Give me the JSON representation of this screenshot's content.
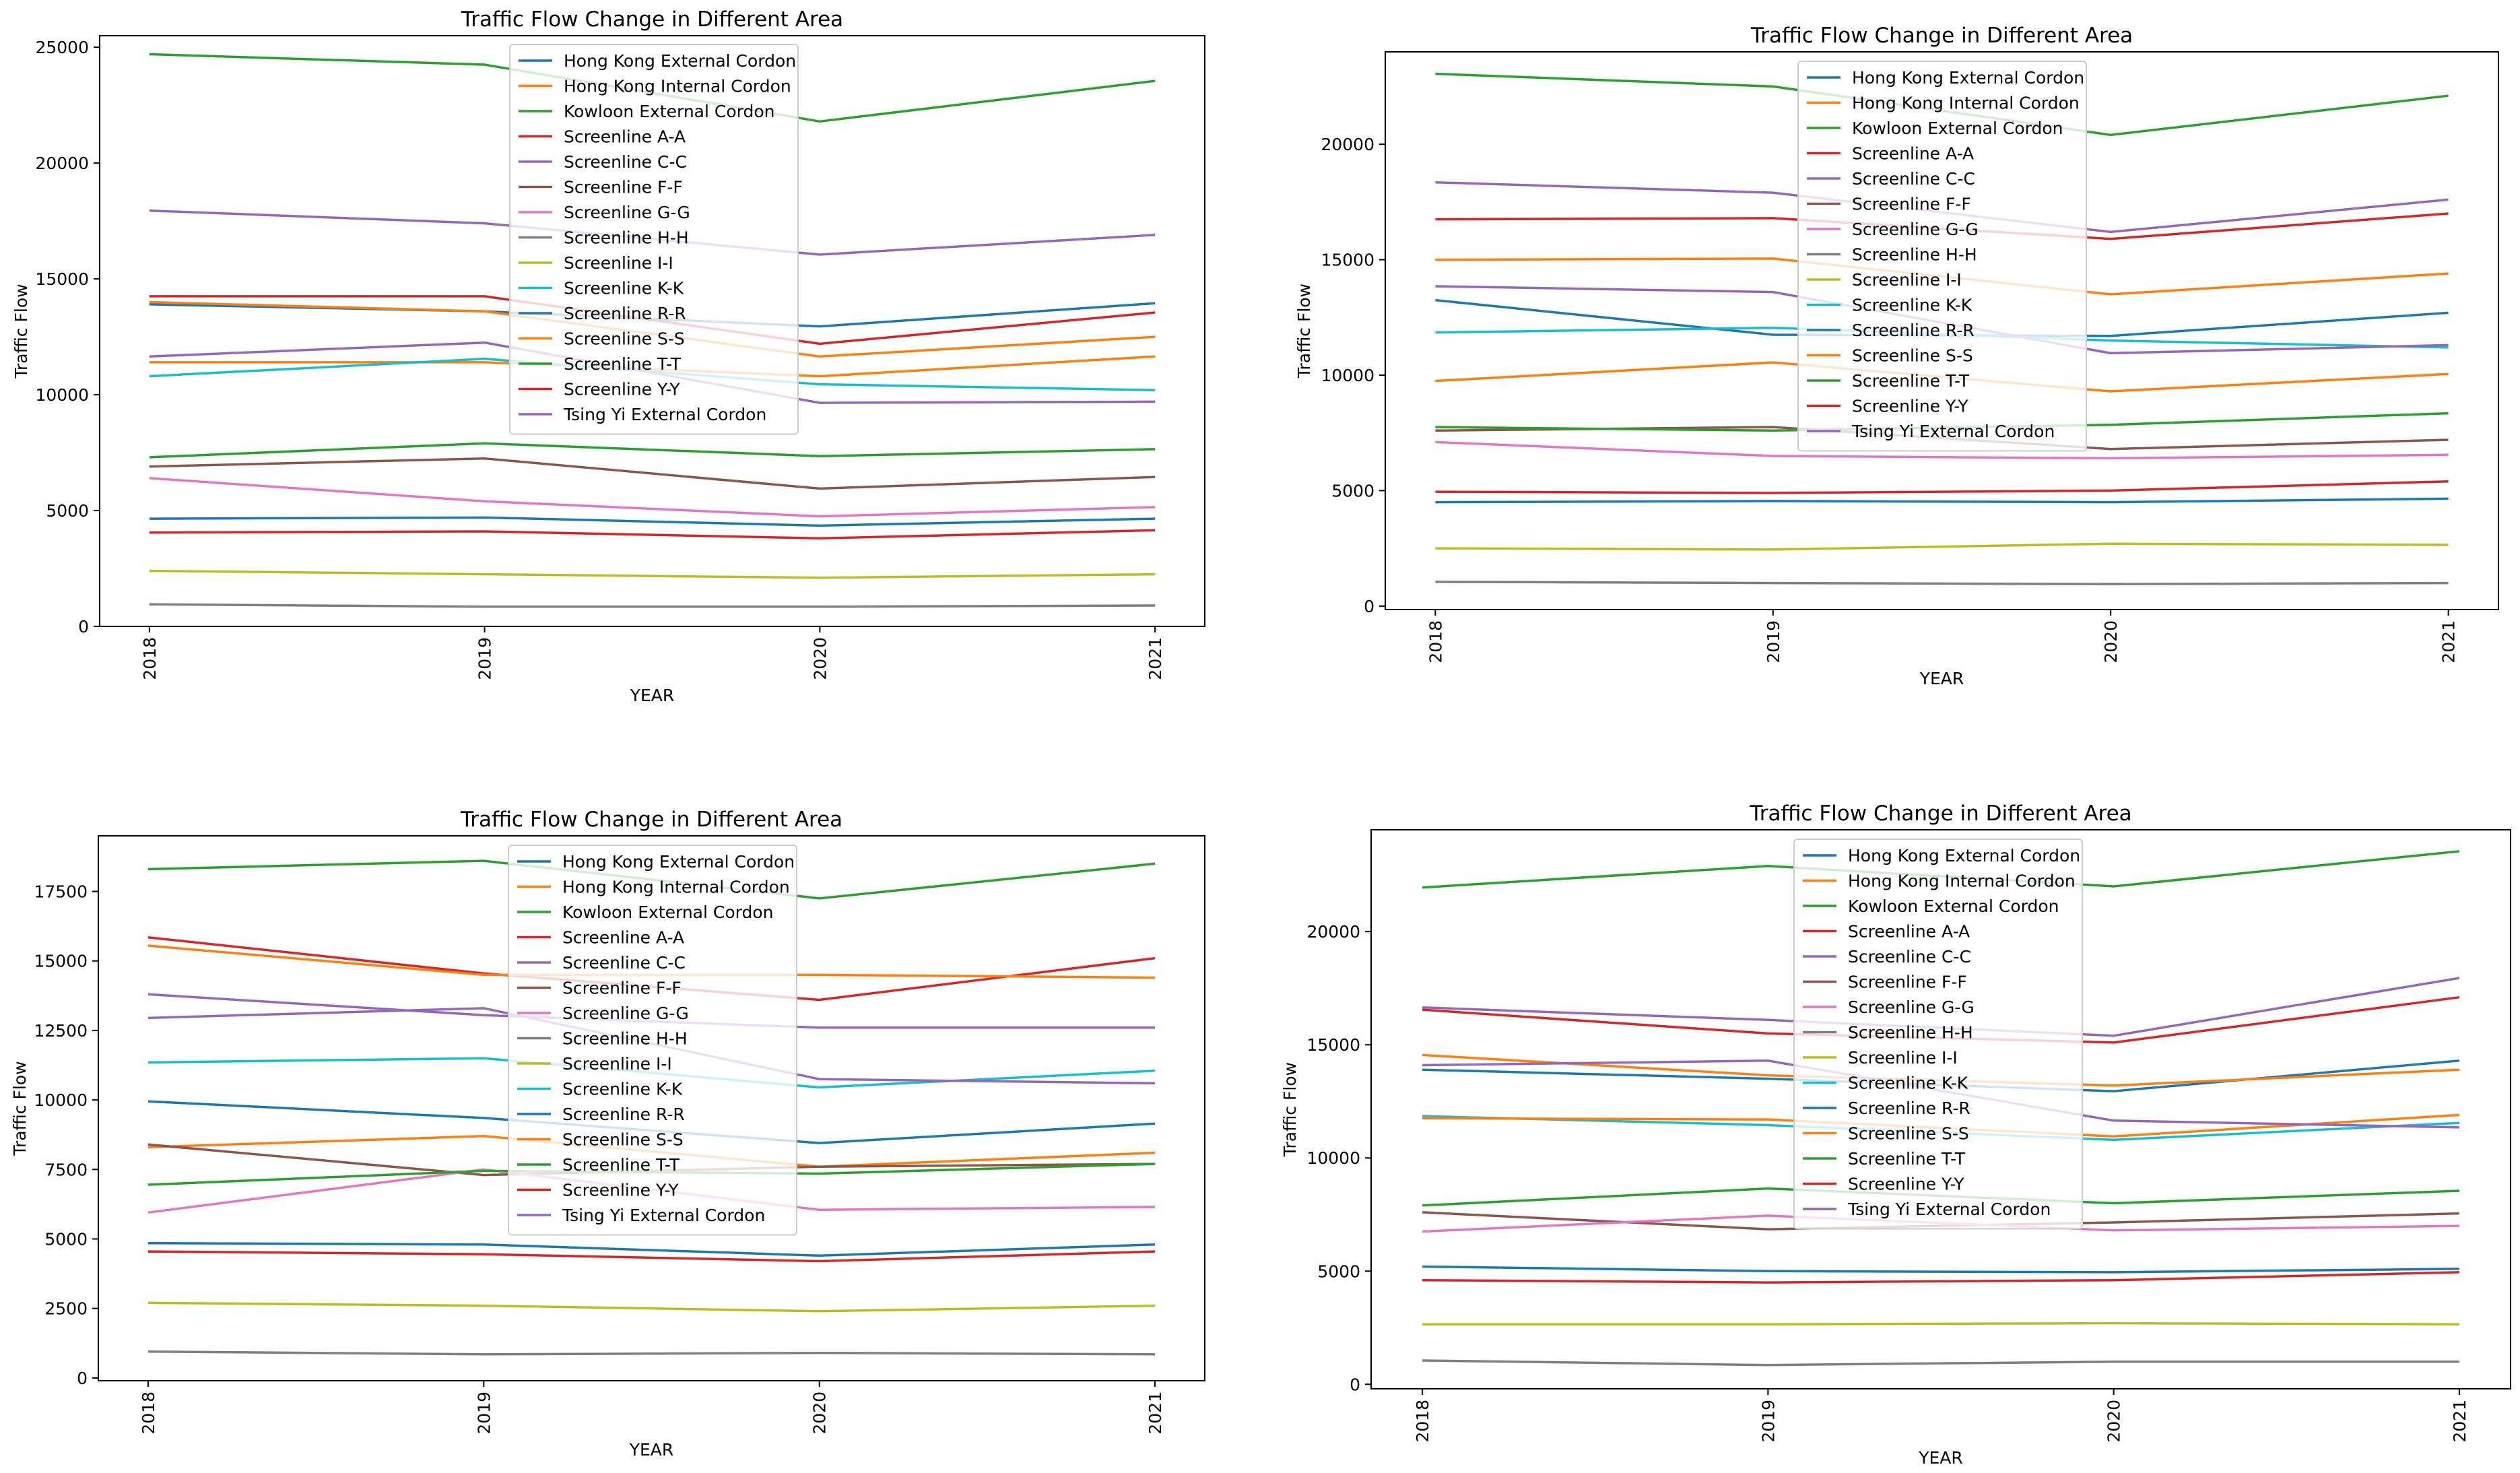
{
  "figure": {
    "title": "Traffic Flow Change in Different Area — four panels"
  },
  "chart_data": [
    {
      "type": "line",
      "title": "Traffic Flow Change in Different Area",
      "xlabel": "YEAR",
      "ylabel": "Traffic Flow",
      "categories": [
        "2018",
        "2019",
        "2020",
        "2021"
      ],
      "ylim": [
        0,
        25500
      ],
      "yticks": [
        0,
        5000,
        10000,
        15000,
        20000,
        25000
      ],
      "legend_location": "upper-center",
      "series": [
        {
          "name": "Hong Kong External Cordon",
          "color": "#1f77b4",
          "values": [
            13900,
            13600,
            12950,
            13950
          ]
        },
        {
          "name": "Hong Kong Internal Cordon",
          "color": "#ff7f0e",
          "values": [
            11400,
            11400,
            10800,
            11650
          ]
        },
        {
          "name": "Kowloon External Cordon",
          "color": "#2ca02c",
          "values": [
            24700,
            24250,
            21800,
            23550
          ]
        },
        {
          "name": "Screenline A-A",
          "color": "#d62728",
          "values": [
            14250,
            14250,
            12200,
            13550
          ]
        },
        {
          "name": "Screenline C-C",
          "color": "#9467bd",
          "values": [
            17950,
            17400,
            16050,
            16900
          ]
        },
        {
          "name": "Screenline F-F",
          "color": "#8c564b",
          "values": [
            6900,
            7250,
            5950,
            6450
          ]
        },
        {
          "name": "Screenline G-G",
          "color": "#e377c2",
          "values": [
            6400,
            5400,
            4750,
            5150
          ]
        },
        {
          "name": "Screenline H-H",
          "color": "#7f7f7f",
          "values": [
            950,
            850,
            850,
            900
          ]
        },
        {
          "name": "Screenline I-I",
          "color": "#bcbd22",
          "values": [
            2400,
            2250,
            2100,
            2250
          ]
        },
        {
          "name": "Screenline K-K",
          "color": "#17becf",
          "values": [
            10800,
            11550,
            10450,
            10200
          ]
        },
        {
          "name": "Screenline R-R",
          "color": "#1f77b4",
          "values": [
            4650,
            4700,
            4350,
            4650
          ]
        },
        {
          "name": "Screenline S-S",
          "color": "#ff7f0e",
          "values": [
            14000,
            13600,
            11650,
            12500
          ]
        },
        {
          "name": "Screenline T-T",
          "color": "#2ca02c",
          "values": [
            7300,
            7900,
            7350,
            7650
          ]
        },
        {
          "name": "Screenline Y-Y",
          "color": "#d62728",
          "values": [
            4050,
            4100,
            3800,
            4150
          ]
        },
        {
          "name": "Tsing Yi External Cordon",
          "color": "#9467bd",
          "values": [
            11650,
            12250,
            9650,
            9700
          ]
        }
      ]
    },
    {
      "type": "line",
      "title": "Traffic Flow Change in Different Area",
      "xlabel": "YEAR",
      "ylabel": "Traffic Flow",
      "categories": [
        "2018",
        "2019",
        "2020",
        "2021"
      ],
      "ylim": [
        -150,
        24000
      ],
      "yticks": [
        0,
        5000,
        10000,
        15000,
        20000
      ],
      "legend_location": "upper-center",
      "series": [
        {
          "name": "Hong Kong External Cordon",
          "color": "#1f77b4",
          "values": [
            13250,
            11750,
            11700,
            12700
          ]
        },
        {
          "name": "Hong Kong Internal Cordon",
          "color": "#ff7f0e",
          "values": [
            15000,
            15050,
            13500,
            14400
          ]
        },
        {
          "name": "Kowloon External Cordon",
          "color": "#2ca02c",
          "values": [
            23050,
            22500,
            20400,
            22100
          ]
        },
        {
          "name": "Screenline A-A",
          "color": "#d62728",
          "values": [
            16750,
            16800,
            15900,
            17000
          ]
        },
        {
          "name": "Screenline C-C",
          "color": "#9467bd",
          "values": [
            18350,
            17900,
            16200,
            17600
          ]
        },
        {
          "name": "Screenline F-F",
          "color": "#8c564b",
          "values": [
            7600,
            7750,
            6800,
            7200
          ]
        },
        {
          "name": "Screenline G-G",
          "color": "#e377c2",
          "values": [
            7100,
            6500,
            6400,
            6550
          ]
        },
        {
          "name": "Screenline H-H",
          "color": "#7f7f7f",
          "values": [
            1050,
            1000,
            950,
            1000
          ]
        },
        {
          "name": "Screenline I-I",
          "color": "#bcbd22",
          "values": [
            2500,
            2450,
            2700,
            2650
          ]
        },
        {
          "name": "Screenline K-K",
          "color": "#17becf",
          "values": [
            11850,
            12050,
            11500,
            11200
          ]
        },
        {
          "name": "Screenline R-R",
          "color": "#1f77b4",
          "values": [
            4500,
            4550,
            4500,
            4650
          ]
        },
        {
          "name": "Screenline S-S",
          "color": "#ff7f0e",
          "values": [
            9750,
            10550,
            9300,
            10050
          ]
        },
        {
          "name": "Screenline T-T",
          "color": "#2ca02c",
          "values": [
            7750,
            7600,
            7850,
            8350
          ]
        },
        {
          "name": "Screenline Y-Y",
          "color": "#d62728",
          "values": [
            4950,
            4900,
            5000,
            5400
          ]
        },
        {
          "name": "Tsing Yi External Cordon",
          "color": "#9467bd",
          "values": [
            13850,
            13600,
            10950,
            11300
          ]
        }
      ]
    },
    {
      "type": "line",
      "title": "Traffic Flow Change in Different Area",
      "xlabel": "YEAR",
      "ylabel": "Traffic Flow",
      "categories": [
        "2018",
        "2019",
        "2020",
        "2021"
      ],
      "ylim": [
        -100,
        19500
      ],
      "yticks": [
        0,
        2500,
        5000,
        7500,
        10000,
        12500,
        15000,
        17500
      ],
      "legend_location": "upper-center",
      "series": [
        {
          "name": "Hong Kong External Cordon",
          "color": "#1f77b4",
          "values": [
            9950,
            9350,
            8450,
            9150
          ]
        },
        {
          "name": "Hong Kong Internal Cordon",
          "color": "#ff7f0e",
          "values": [
            8300,
            8700,
            7600,
            8100
          ]
        },
        {
          "name": "Kowloon External Cordon",
          "color": "#2ca02c",
          "values": [
            18300,
            18600,
            17250,
            18500
          ]
        },
        {
          "name": "Screenline A-A",
          "color": "#d62728",
          "values": [
            15850,
            14550,
            13600,
            15100
          ]
        },
        {
          "name": "Screenline C-C",
          "color": "#9467bd",
          "values": [
            13800,
            13050,
            12600,
            12600
          ]
        },
        {
          "name": "Screenline F-F",
          "color": "#8c564b",
          "values": [
            8400,
            7300,
            7600,
            7700
          ]
        },
        {
          "name": "Screenline G-G",
          "color": "#e377c2",
          "values": [
            5950,
            7500,
            6050,
            6150
          ]
        },
        {
          "name": "Screenline H-H",
          "color": "#7f7f7f",
          "values": [
            950,
            850,
            900,
            850
          ]
        },
        {
          "name": "Screenline I-I",
          "color": "#bcbd22",
          "values": [
            2700,
            2600,
            2400,
            2600
          ]
        },
        {
          "name": "Screenline K-K",
          "color": "#17becf",
          "values": [
            11350,
            11500,
            10450,
            11050
          ]
        },
        {
          "name": "Screenline R-R",
          "color": "#1f77b4",
          "values": [
            4850,
            4800,
            4400,
            4800
          ]
        },
        {
          "name": "Screenline S-S",
          "color": "#ff7f0e",
          "values": [
            15550,
            14500,
            14500,
            14400
          ]
        },
        {
          "name": "Screenline T-T",
          "color": "#2ca02c",
          "values": [
            6950,
            7450,
            7350,
            7700
          ]
        },
        {
          "name": "Screenline Y-Y",
          "color": "#d62728",
          "values": [
            4550,
            4450,
            4200,
            4550
          ]
        },
        {
          "name": "Tsing Yi External Cordon",
          "color": "#9467bd",
          "values": [
            12950,
            13300,
            10750,
            10600
          ]
        }
      ]
    },
    {
      "type": "line",
      "title": "Traffic Flow Change in Different Area",
      "xlabel": "YEAR",
      "ylabel": "Traffic Flow",
      "categories": [
        "2018",
        "2019",
        "2020",
        "2021"
      ],
      "ylim": [
        -200,
        24500
      ],
      "yticks": [
        0,
        5000,
        10000,
        15000,
        20000
      ],
      "legend_location": "upper-center",
      "series": [
        {
          "name": "Hong Kong External Cordon",
          "color": "#1f77b4",
          "values": [
            13900,
            13500,
            12950,
            14300
          ]
        },
        {
          "name": "Hong Kong Internal Cordon",
          "color": "#ff7f0e",
          "values": [
            14550,
            13650,
            13200,
            13900
          ]
        },
        {
          "name": "Kowloon External Cordon",
          "color": "#2ca02c",
          "values": [
            21950,
            22900,
            22000,
            23550
          ]
        },
        {
          "name": "Screenline A-A",
          "color": "#d62728",
          "values": [
            16550,
            15500,
            15100,
            17100
          ]
        },
        {
          "name": "Screenline C-C",
          "color": "#9467bd",
          "values": [
            16650,
            16100,
            15400,
            17950
          ]
        },
        {
          "name": "Screenline F-F",
          "color": "#8c564b",
          "values": [
            7600,
            6850,
            7150,
            7550
          ]
        },
        {
          "name": "Screenline G-G",
          "color": "#e377c2",
          "values": [
            6750,
            7450,
            6800,
            7000
          ]
        },
        {
          "name": "Screenline H-H",
          "color": "#7f7f7f",
          "values": [
            1050,
            850,
            1000,
            1000
          ]
        },
        {
          "name": "Screenline I-I",
          "color": "#bcbd22",
          "values": [
            2650,
            2650,
            2700,
            2650
          ]
        },
        {
          "name": "Screenline K-K",
          "color": "#17becf",
          "values": [
            11850,
            11450,
            10800,
            11550
          ]
        },
        {
          "name": "Screenline R-R",
          "color": "#1f77b4",
          "values": [
            5200,
            5000,
            4950,
            5100
          ]
        },
        {
          "name": "Screenline S-S",
          "color": "#ff7f0e",
          "values": [
            11750,
            11700,
            10950,
            11900
          ]
        },
        {
          "name": "Screenline T-T",
          "color": "#2ca02c",
          "values": [
            7900,
            8650,
            8000,
            8550
          ]
        },
        {
          "name": "Screenline Y-Y",
          "color": "#d62728",
          "values": [
            4600,
            4500,
            4600,
            4950
          ]
        },
        {
          "name": "Tsing Yi External Cordon",
          "color": "#9467bd",
          "values": [
            14100,
            14300,
            11650,
            11350
          ]
        }
      ]
    }
  ]
}
